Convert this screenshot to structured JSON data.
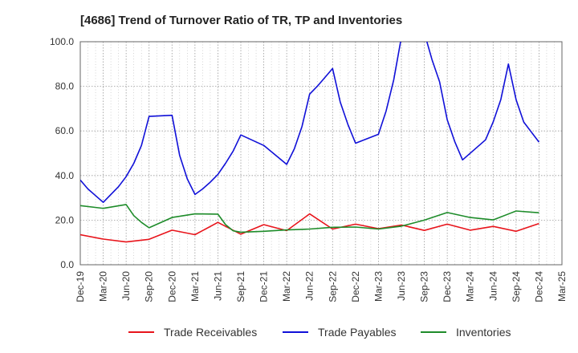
{
  "chart_data": {
    "type": "line",
    "title": "[4686]  Trend of Turnover Ratio of TR, TP and Inventories",
    "xlabel": "",
    "ylabel": "",
    "ylim": [
      0,
      100
    ],
    "yticks": [
      "0.0",
      "20.0",
      "40.0",
      "60.0",
      "80.0",
      "100.0"
    ],
    "x_tick_labels": [
      "Dec-19",
      "Mar-20",
      "Jun-20",
      "Sep-20",
      "Dec-20",
      "Mar-21",
      "Jun-21",
      "Sep-21",
      "Dec-21",
      "Mar-22",
      "Jun-22",
      "Sep-22",
      "Dec-22",
      "Mar-23",
      "Jun-23",
      "Sep-23",
      "Dec-23",
      "Mar-24",
      "Jun-24",
      "Sep-24",
      "Dec-24",
      "Mar-25"
    ],
    "x": [
      "Dec-19",
      "Jan-20",
      "Feb-20",
      "Mar-20",
      "Apr-20",
      "May-20",
      "Jun-20",
      "Jul-20",
      "Aug-20",
      "Sep-20",
      "Oct-20",
      "Nov-20",
      "Dec-20",
      "Jan-21",
      "Feb-21",
      "Mar-21",
      "Apr-21",
      "May-21",
      "Jun-21",
      "Jul-21",
      "Aug-21",
      "Sep-21",
      "Oct-21",
      "Nov-21",
      "Dec-21",
      "Jan-22",
      "Feb-22",
      "Mar-22",
      "Apr-22",
      "May-22",
      "Jun-22",
      "Jul-22",
      "Aug-22",
      "Sep-22",
      "Oct-22",
      "Nov-22",
      "Dec-22",
      "Jan-23",
      "Feb-23",
      "Mar-23",
      "Apr-23",
      "May-23",
      "Jun-23",
      "Jul-23",
      "Aug-23",
      "Sep-23",
      "Oct-23",
      "Nov-23",
      "Dec-23",
      "Jan-24",
      "Feb-24",
      "Mar-24",
      "Apr-24",
      "May-24",
      "Jun-24",
      "Jul-24",
      "Aug-24",
      "Sep-24",
      "Oct-24",
      "Nov-24",
      "Dec-24"
    ],
    "grid": true,
    "legend_position": "bottom",
    "series": [
      {
        "name": "Trade Receivables",
        "color": "#e8141b",
        "values": [
          13.5,
          null,
          null,
          11.5,
          null,
          null,
          10.2,
          null,
          null,
          11.4,
          null,
          null,
          15.5,
          null,
          null,
          13.5,
          null,
          null,
          19.0,
          null,
          null,
          13.7,
          null,
          null,
          18.0,
          null,
          null,
          15.3,
          null,
          null,
          22.8,
          null,
          null,
          16.0,
          null,
          null,
          18.2,
          null,
          null,
          16.2,
          null,
          null,
          17.8,
          null,
          null,
          15.4,
          null,
          null,
          18.2,
          null,
          null,
          15.5,
          null,
          null,
          17.2,
          null,
          null,
          15.0,
          null,
          null,
          18.5
        ]
      },
      {
        "name": "Trade Payables",
        "color": "#1010d8",
        "values": [
          38.0,
          34.0,
          31.0,
          28.0,
          31.5,
          35.0,
          39.5,
          45.5,
          53.5,
          66.5,
          null,
          null,
          67.0,
          49.0,
          38.5,
          31.5,
          34.0,
          37.0,
          40.5,
          45.5,
          51.0,
          58.2,
          null,
          null,
          53.5,
          null,
          null,
          45.0,
          52.0,
          62.0,
          76.5,
          80.0,
          84.0,
          88.0,
          73.0,
          63.0,
          54.5,
          null,
          null,
          58.5,
          69.0,
          83.0,
          102.0,
          null,
          null,
          104.0,
          92.0,
          82.0,
          65.0,
          55.0,
          47.0,
          null,
          null,
          56.0,
          64.0,
          74.0,
          90.0,
          74.0,
          64.0,
          null,
          55.0
        ]
      },
      {
        "name": "Inventories",
        "color": "#1e8c2a",
        "values": [
          26.5,
          null,
          null,
          25.3,
          null,
          null,
          27.0,
          22.0,
          19.0,
          16.6,
          null,
          null,
          21.2,
          null,
          null,
          22.8,
          null,
          null,
          22.7,
          18.0,
          15.2,
          14.6,
          null,
          null,
          15.0,
          null,
          null,
          15.6,
          null,
          null,
          16.0,
          null,
          null,
          16.8,
          null,
          null,
          16.9,
          null,
          null,
          16.0,
          null,
          null,
          17.3,
          null,
          null,
          20.0,
          null,
          null,
          23.4,
          null,
          null,
          21.2,
          null,
          null,
          20.1,
          null,
          null,
          24.1,
          null,
          null,
          23.3
        ]
      }
    ]
  }
}
